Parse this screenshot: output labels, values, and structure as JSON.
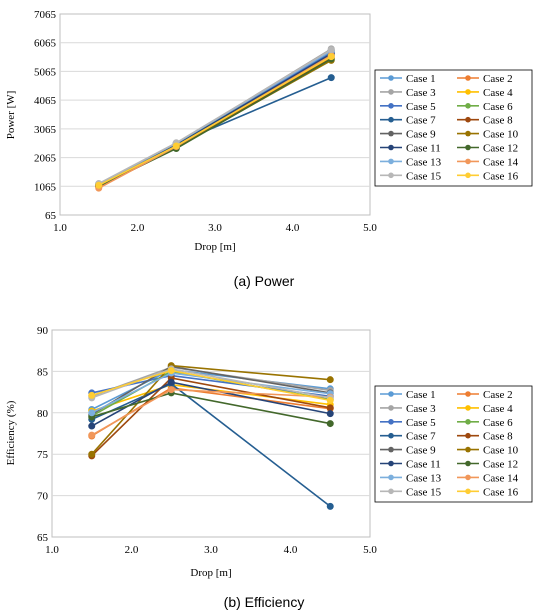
{
  "colors": [
    "#5b9bd5",
    "#ed7d31",
    "#a5a5a5",
    "#ffc000",
    "#4472c4",
    "#70ad47",
    "#255e91",
    "#9e480e",
    "#636363",
    "#997300",
    "#264478",
    "#43682b",
    "#7cafdd",
    "#f1975a",
    "#b7b7b7",
    "#ffcd33"
  ],
  "chart_data": [
    {
      "type": "line",
      "caption": "(a) Power",
      "xlabel": "Drop [m]",
      "ylabel": "Power [W]",
      "xlim": [
        1.0,
        5.0
      ],
      "ylim": [
        65,
        7065
      ],
      "xticks": [
        1.0,
        2.0,
        3.0,
        4.0,
        5.0
      ],
      "xtick_labels": [
        "1.0",
        "2.0",
        "3.0",
        "4.0",
        "5.0"
      ],
      "yticks": [
        65,
        1065,
        2065,
        3065,
        4065,
        5065,
        6065,
        7065
      ],
      "ytick_labels": [
        "65",
        "1065",
        "2065",
        "3065",
        "4065",
        "5065",
        "6065",
        "7065"
      ],
      "x": [
        1.5,
        2.5,
        4.5
      ],
      "series": [
        {
          "name": "Case 1",
          "values": [
            1100,
            2500,
            5700
          ]
        },
        {
          "name": "Case 2",
          "values": [
            1050,
            2450,
            5600
          ]
        },
        {
          "name": "Case 3",
          "values": [
            1150,
            2550,
            5850
          ]
        },
        {
          "name": "Case 4",
          "values": [
            1100,
            2450,
            5500
          ]
        },
        {
          "name": "Case 5",
          "values": [
            1120,
            2520,
            5750
          ]
        },
        {
          "name": "Case 6",
          "values": [
            1080,
            2480,
            5650
          ]
        },
        {
          "name": "Case 7",
          "values": [
            1100,
            2550,
            4850
          ]
        },
        {
          "name": "Case 8",
          "values": [
            1050,
            2400,
            5550
          ]
        },
        {
          "name": "Case 9",
          "values": [
            1130,
            2530,
            5800
          ]
        },
        {
          "name": "Case 10",
          "values": [
            1090,
            2420,
            5450
          ]
        },
        {
          "name": "Case 11",
          "values": [
            1110,
            2500,
            5680
          ]
        },
        {
          "name": "Case 12",
          "values": [
            1070,
            2380,
            5500
          ]
        },
        {
          "name": "Case 13",
          "values": [
            1140,
            2560,
            5780
          ]
        },
        {
          "name": "Case 14",
          "values": [
            1000,
            2450,
            5620
          ]
        },
        {
          "name": "Case 15",
          "values": [
            1160,
            2580,
            5820
          ]
        },
        {
          "name": "Case 16",
          "values": [
            1100,
            2470,
            5580
          ]
        }
      ]
    },
    {
      "type": "line",
      "caption": "(b) Efficiency",
      "xlabel": "Drop [m]",
      "ylabel": "Efficiency (%)",
      "xlim": [
        1.0,
        5.0
      ],
      "ylim": [
        65,
        90
      ],
      "xticks": [
        1.0,
        2.0,
        3.0,
        4.0,
        5.0
      ],
      "xtick_labels": [
        "1.0",
        "2.0",
        "3.0",
        "4.0",
        "5.0"
      ],
      "yticks": [
        65,
        70,
        75,
        80,
        85,
        90
      ],
      "ytick_labels": [
        "65",
        "70",
        "75",
        "80",
        "85",
        "90"
      ],
      "x": [
        1.5,
        2.5,
        4.5
      ],
      "series": [
        {
          "name": "Case 1",
          "values": [
            80.4,
            85.2,
            82.9
          ]
        },
        {
          "name": "Case 2",
          "values": [
            77.2,
            83.0,
            80.5
          ]
        },
        {
          "name": "Case 3",
          "values": [
            82.0,
            85.5,
            82.7
          ]
        },
        {
          "name": "Case 4",
          "values": [
            80.2,
            83.4,
            81.0
          ]
        },
        {
          "name": "Case 5",
          "values": [
            82.4,
            84.5,
            82.0
          ]
        },
        {
          "name": "Case 6",
          "values": [
            79.6,
            85.0,
            81.6
          ]
        },
        {
          "name": "Case 7",
          "values": [
            79.2,
            83.5,
            68.7
          ]
        },
        {
          "name": "Case 8",
          "values": [
            74.8,
            84.2,
            80.6
          ]
        },
        {
          "name": "Case 9",
          "values": [
            79.8,
            85.6,
            82.4
          ]
        },
        {
          "name": "Case 10",
          "values": [
            75.0,
            85.7,
            84.0
          ]
        },
        {
          "name": "Case 11",
          "values": [
            78.4,
            83.7,
            79.9
          ]
        },
        {
          "name": "Case 12",
          "values": [
            79.5,
            82.4,
            78.7
          ]
        },
        {
          "name": "Case 13",
          "values": [
            80.0,
            84.8,
            82.3
          ]
        },
        {
          "name": "Case 14",
          "values": [
            77.3,
            82.8,
            81.9
          ]
        },
        {
          "name": "Case 15",
          "values": [
            81.8,
            85.3,
            81.8
          ]
        },
        {
          "name": "Case 16",
          "values": [
            82.1,
            85.1,
            81.5
          ]
        }
      ]
    }
  ]
}
